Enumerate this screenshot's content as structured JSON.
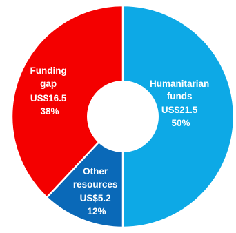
{
  "chart_data": {
    "type": "pie",
    "donut": true,
    "slices": [
      {
        "name": "Humanitarian funds",
        "value_text": "US$21.5",
        "percent_text": "50%",
        "value": 21.5,
        "percent": 50,
        "color": "#0DA9E6",
        "label_lines": [
          "Humanitarian",
          "funds",
          "US$21.5",
          "50%"
        ]
      },
      {
        "name": "Other resources",
        "value_text": "US$5.2",
        "percent_text": "12%",
        "value": 5.2,
        "percent": 12,
        "color": "#0A69B8",
        "label_lines": [
          "Other",
          "resources",
          "US$5.2",
          "12%"
        ]
      },
      {
        "name": "Funding gap",
        "value_text": "US$16.5",
        "percent_text": "38%",
        "value": 16.5,
        "percent": 38,
        "color": "#F40000",
        "label_lines": [
          "Funding",
          "gap",
          "US$16.5",
          "38%"
        ]
      }
    ],
    "start_position": "top, clockwise"
  }
}
